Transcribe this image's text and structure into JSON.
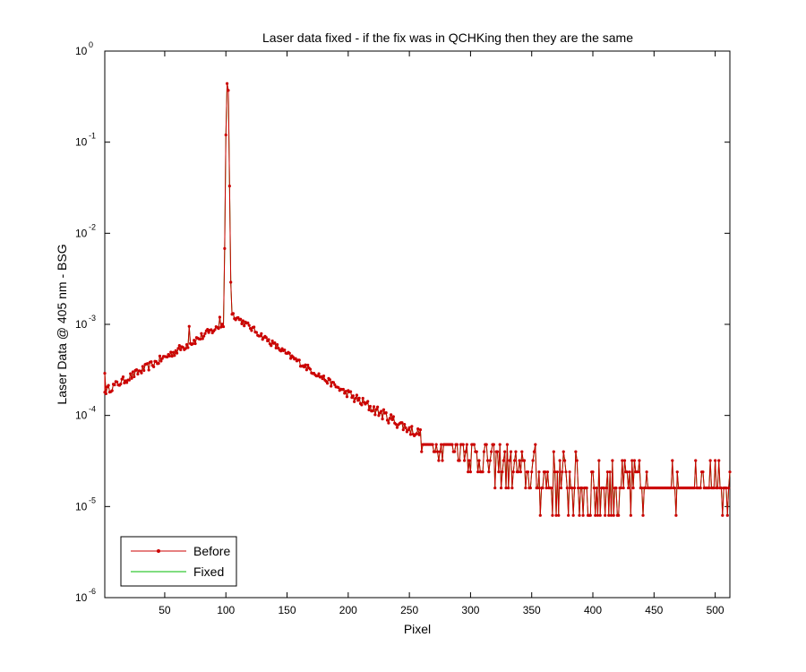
{
  "chart_data": {
    "type": "line",
    "title": "Laser data fixed - if the fix was in QCHKing then they are the same",
    "xlabel": "Pixel",
    "ylabel": "Laser Data @ 405 nm - BSG",
    "xlim": [
      1,
      512
    ],
    "ylim": [
      1e-06,
      1
    ],
    "yscale": "log",
    "grid": false,
    "legend_position": "bottom-left",
    "x_ticks": [
      "50",
      "100",
      "150",
      "200",
      "250",
      "300",
      "350",
      "400",
      "450",
      "500"
    ],
    "y_ticks": [
      {
        "base": "10",
        "exp": "0",
        "value": 1
      },
      {
        "base": "10",
        "exp": "-1",
        "value": 0.1
      },
      {
        "base": "10",
        "exp": "-2",
        "value": 0.01
      },
      {
        "base": "10",
        "exp": "-3",
        "value": 0.001
      },
      {
        "base": "10",
        "exp": "-4",
        "value": 0.0001
      },
      {
        "base": "10",
        "exp": "-5",
        "value": 1e-05
      },
      {
        "base": "10",
        "exp": "-6",
        "value": 1e-06
      }
    ],
    "series": [
      {
        "name": "Before",
        "color": "#cc0000",
        "marker": "dot",
        "line": true
      },
      {
        "name": "Fixed",
        "color": "#00bb00",
        "marker": "none",
        "line": true
      }
    ],
    "key_points": [
      {
        "x": 1,
        "y": 0.00018
      },
      {
        "x": 1,
        "y": 0.00029
      },
      {
        "x": 50,
        "y": 0.00048
      },
      {
        "x": 70,
        "y": 0.00085
      },
      {
        "x": 98,
        "y": 0.00105
      },
      {
        "x": 99,
        "y": 0.0068
      },
      {
        "x": 100,
        "y": 0.12
      },
      {
        "x": 101,
        "y": 0.44
      },
      {
        "x": 102,
        "y": 0.37
      },
      {
        "x": 103,
        "y": 0.033
      },
      {
        "x": 104,
        "y": 0.0029
      },
      {
        "x": 105,
        "y": 0.0013
      },
      {
        "x": 150,
        "y": 0.00047
      },
      {
        "x": 200,
        "y": 0.00017
      },
      {
        "x": 250,
        "y": 7e-05
      },
      {
        "x": 300,
        "y": 4e-05
      },
      {
        "x": 350,
        "y": 2.2e-05
      },
      {
        "x": 400,
        "y": 1.6e-05
      },
      {
        "x": 512,
        "y": 1.6e-05
      }
    ],
    "noise_levels": [
      8e-06,
      1.6e-05,
      2.4e-05,
      3.2e-05,
      4e-05,
      4.8e-05
    ]
  }
}
